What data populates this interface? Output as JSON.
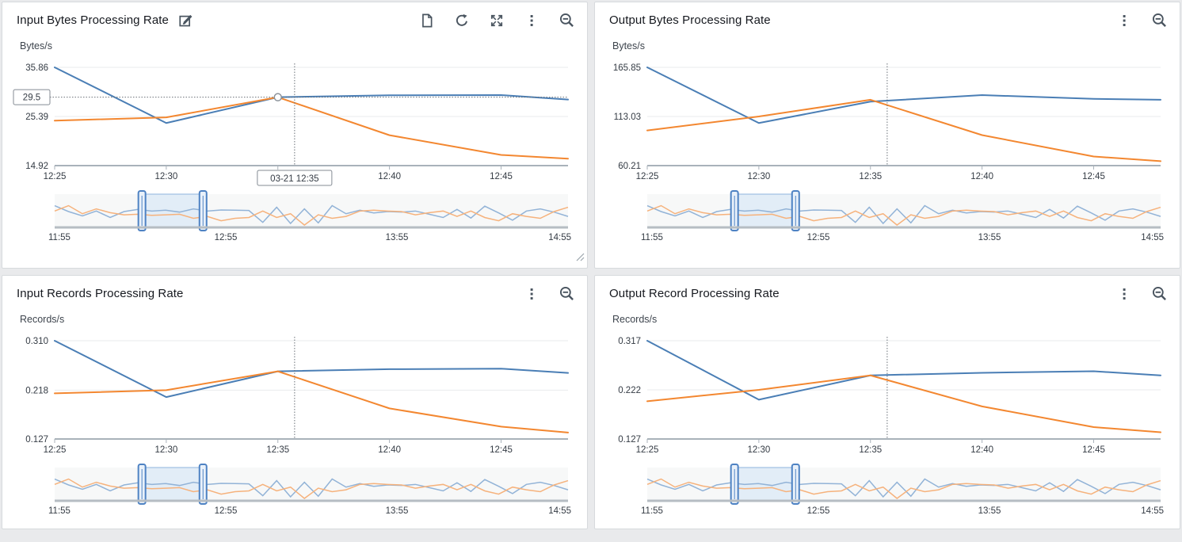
{
  "colors": {
    "series_blue": "#4a7eb5",
    "series_orange": "#f38730",
    "brush_blue": "#92b3d7",
    "brush_orange": "#f6b27c",
    "crosshair": "#697077",
    "grid": "#e9ebed",
    "axis": "#a9b2ba",
    "brush_axis": "#b6bdc3",
    "brush_bg": "#f7f8f8",
    "selection_fill": "#d7e6f6",
    "selection_border": "#8fb4dd",
    "handle_border": "#4e82c3",
    "handle_fill": "#e9f1fa",
    "tooltip_border": "#848b93",
    "marker_stroke": "#8a9199"
  },
  "panels": [
    {
      "toolbar": [
        "edit",
        "file",
        "refresh",
        "expand",
        "kebab-menu",
        "zoom-out"
      ],
      "has_resize_grip": true
    },
    {
      "toolbar": [
        "kebab-menu",
        "zoom-out"
      ],
      "has_resize_grip": false
    },
    {
      "toolbar": [
        "kebab-menu",
        "zoom-out"
      ],
      "has_resize_grip": false
    },
    {
      "toolbar": [
        "kebab-menu",
        "zoom-out"
      ],
      "has_resize_grip": false
    }
  ],
  "brush_series": {
    "blue": [
      0.72,
      0.5,
      0.34,
      0.52,
      0.28,
      0.5,
      0.58,
      0.52,
      0.55,
      0.48,
      0.6,
      0.52,
      0.56,
      0.55,
      0.54,
      0.1,
      0.66,
      0.06,
      0.6,
      0.08,
      0.72,
      0.42,
      0.55,
      0.45,
      0.5,
      0.48,
      0.52,
      0.4,
      0.28,
      0.58,
      0.26,
      0.7,
      0.45,
      0.18,
      0.52,
      0.6,
      0.48,
      0.32
    ],
    "orange": [
      0.52,
      0.72,
      0.42,
      0.6,
      0.46,
      0.38,
      0.4,
      0.36,
      0.38,
      0.4,
      0.25,
      0.32,
      0.16,
      0.25,
      0.28,
      0.52,
      0.28,
      0.42,
      0.0,
      0.38,
      0.25,
      0.32,
      0.52,
      0.55,
      0.52,
      0.5,
      0.38,
      0.46,
      0.52,
      0.32,
      0.52,
      0.28,
      0.16,
      0.42,
      0.32,
      0.25,
      0.5,
      0.66
    ]
  },
  "chart_data": [
    {
      "type": "line",
      "title": "Input Bytes Processing Rate",
      "ylabel": "Bytes/s",
      "x_tick_labels": [
        "12:25",
        "12:30",
        "12:35",
        "12:40",
        "12:45"
      ],
      "x_tick_minutes": [
        0,
        5,
        10,
        15,
        20
      ],
      "x_domain_minutes": [
        0,
        23
      ],
      "x_points_minutes": [
        0,
        5,
        10,
        15,
        20,
        23
      ],
      "y_ticks": {
        "labels": [
          "35.86",
          "25.39",
          "14.92"
        ],
        "values": [
          35.86,
          25.39,
          14.92
        ]
      },
      "series": [
        {
          "name": "series-1",
          "color": "#4a7eb5",
          "values": [
            35.86,
            24.0,
            29.5,
            29.9,
            29.95,
            29.0
          ]
        },
        {
          "name": "series-2",
          "color": "#f38730",
          "values": [
            24.5,
            25.2,
            29.5,
            21.4,
            17.2,
            16.4
          ]
        }
      ],
      "crosshair": {
        "x_minutes": 10.75,
        "show_horizontal": true,
        "y_value": 29.5,
        "y_axis_tooltip": "29.5",
        "x_axis_tooltip": "03-21 12:35",
        "marker_at": {
          "x_minutes": 10,
          "value": 29.5
        },
        "hide_x_tick": "12:35"
      },
      "brush": {
        "x_labels": [
          "11:55",
          "12:55",
          "13:55",
          "14:55"
        ],
        "selection": [
          0.17,
          0.289
        ]
      }
    },
    {
      "type": "line",
      "title": "Output Bytes Processing Rate",
      "ylabel": "Bytes/s",
      "x_tick_labels": [
        "12:25",
        "12:30",
        "12:35",
        "12:40",
        "12:45"
      ],
      "x_tick_minutes": [
        0,
        5,
        10,
        15,
        20
      ],
      "x_domain_minutes": [
        0,
        23
      ],
      "x_points_minutes": [
        0,
        5,
        10,
        15,
        20,
        23
      ],
      "y_ticks": {
        "labels": [
          "165.85",
          "113.03",
          "60.21"
        ],
        "values": [
          165.85,
          113.03,
          60.21
        ]
      },
      "series": [
        {
          "name": "series-1",
          "color": "#4a7eb5",
          "values": [
            165.85,
            106,
            129,
            136,
            132,
            131
          ]
        },
        {
          "name": "series-2",
          "color": "#f38730",
          "values": [
            98,
            113,
            131,
            93,
            70,
            65
          ]
        }
      ],
      "crosshair": {
        "x_minutes": 10.75,
        "show_horizontal": false
      },
      "brush": {
        "x_labels": [
          "11:55",
          "12:55",
          "13:55",
          "14:55"
        ],
        "selection": [
          0.17,
          0.289
        ]
      }
    },
    {
      "type": "line",
      "title": "Input Records Processing Rate",
      "ylabel": "Records/s",
      "x_tick_labels": [
        "12:25",
        "12:30",
        "12:35",
        "12:40",
        "12:45"
      ],
      "x_tick_minutes": [
        0,
        5,
        10,
        15,
        20
      ],
      "x_domain_minutes": [
        0,
        23
      ],
      "x_points_minutes": [
        0,
        5,
        10,
        15,
        20,
        23
      ],
      "y_ticks": {
        "labels": [
          "0.310",
          "0.218",
          "0.127"
        ],
        "values": [
          0.31,
          0.218,
          0.127
        ]
      },
      "series": [
        {
          "name": "series-1",
          "color": "#4a7eb5",
          "values": [
            0.31,
            0.205,
            0.253,
            0.257,
            0.258,
            0.25
          ]
        },
        {
          "name": "series-2",
          "color": "#f38730",
          "values": [
            0.212,
            0.218,
            0.253,
            0.184,
            0.15,
            0.139
          ]
        }
      ],
      "crosshair": {
        "x_minutes": 10.75,
        "show_horizontal": false
      },
      "brush": {
        "x_labels": [
          "11:55",
          "12:55",
          "13:55",
          "14:55"
        ],
        "selection": [
          0.17,
          0.289
        ]
      }
    },
    {
      "type": "line",
      "title": "Output Record Processing Rate",
      "ylabel": "Records/s",
      "x_tick_labels": [
        "12:25",
        "12:30",
        "12:35",
        "12:40",
        "12:45"
      ],
      "x_tick_minutes": [
        0,
        5,
        10,
        15,
        20
      ],
      "x_domain_minutes": [
        0,
        23
      ],
      "x_points_minutes": [
        0,
        5,
        10,
        15,
        20,
        23
      ],
      "y_ticks": {
        "labels": [
          "0.317",
          "0.222",
          "0.127"
        ],
        "values": [
          0.317,
          0.222,
          0.127
        ]
      },
      "series": [
        {
          "name": "series-1",
          "color": "#4a7eb5",
          "values": [
            0.317,
            0.203,
            0.25,
            0.255,
            0.258,
            0.25
          ]
        },
        {
          "name": "series-2",
          "color": "#f38730",
          "values": [
            0.2,
            0.222,
            0.25,
            0.19,
            0.15,
            0.14
          ]
        }
      ],
      "crosshair": {
        "x_minutes": 10.75,
        "show_horizontal": false
      },
      "brush": {
        "x_labels": [
          "11:55",
          "12:55",
          "13:55",
          "14:55"
        ],
        "selection": [
          0.17,
          0.289
        ]
      }
    }
  ]
}
